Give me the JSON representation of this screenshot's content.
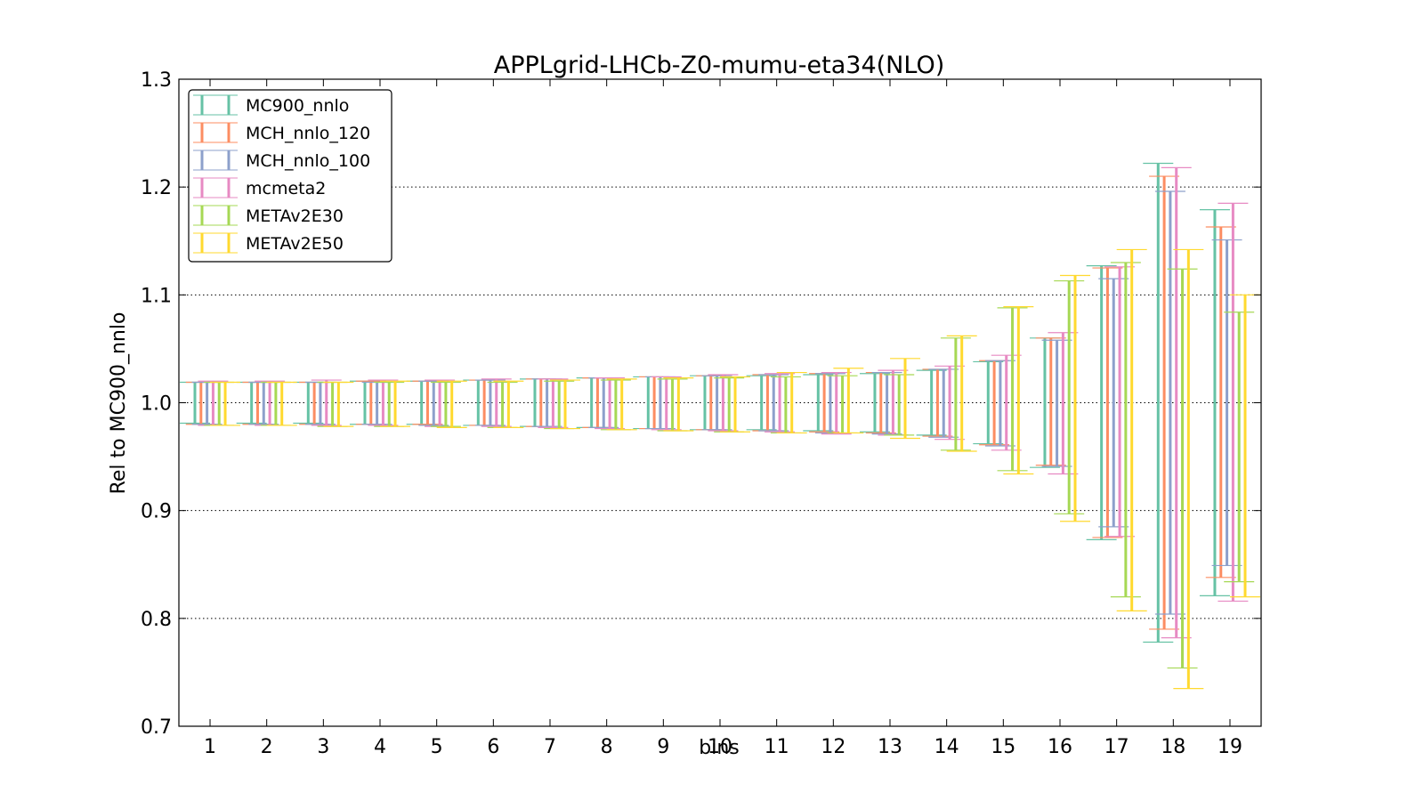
{
  "chart_data": {
    "type": "errorbar",
    "title": "APPLgrid-LHCb-Z0-mumu-eta34(NLO)",
    "xlabel": "bins",
    "ylabel": "Rel to MC900_nnlo",
    "ylim": [
      0.7,
      1.3
    ],
    "yticks": [
      "0.7",
      "0.8",
      "0.9",
      "1.0",
      "1.1",
      "1.2",
      "1.3"
    ],
    "categories": [
      "1",
      "2",
      "3",
      "4",
      "5",
      "6",
      "7",
      "8",
      "9",
      "10",
      "11",
      "12",
      "13",
      "14",
      "15",
      "16",
      "17",
      "18",
      "19"
    ],
    "grid": "horizontal dotted",
    "legend_position": "top-left",
    "series": [
      {
        "name": "MC900_nnlo",
        "color": "#66c2a5",
        "lower": [
          0.981,
          0.981,
          0.981,
          0.98,
          0.98,
          0.979,
          0.978,
          0.977,
          0.976,
          0.975,
          0.975,
          0.974,
          0.973,
          0.97,
          0.962,
          0.94,
          0.873,
          0.778,
          0.821
        ],
        "upper": [
          1.019,
          1.019,
          1.019,
          1.02,
          1.02,
          1.021,
          1.022,
          1.023,
          1.024,
          1.025,
          1.025,
          1.026,
          1.027,
          1.03,
          1.038,
          1.06,
          1.127,
          1.222,
          1.179
        ]
      },
      {
        "name": "MCH_nnlo_120",
        "color": "#fc8d62",
        "lower": [
          0.98,
          0.98,
          0.98,
          0.98,
          0.98,
          0.979,
          0.978,
          0.977,
          0.976,
          0.975,
          0.974,
          0.973,
          0.972,
          0.969,
          0.961,
          0.942,
          0.875,
          0.79,
          0.838
        ],
        "upper": [
          1.019,
          1.019,
          1.019,
          1.02,
          1.02,
          1.021,
          1.022,
          1.023,
          1.024,
          1.025,
          1.026,
          1.027,
          1.028,
          1.031,
          1.039,
          1.06,
          1.125,
          1.21,
          1.163
        ]
      },
      {
        "name": "MCH_nnlo_100",
        "color": "#8da0cb",
        "lower": [
          0.98,
          0.98,
          0.98,
          0.98,
          0.979,
          0.979,
          0.978,
          0.977,
          0.976,
          0.975,
          0.974,
          0.972,
          0.971,
          0.968,
          0.96,
          0.941,
          0.885,
          0.804,
          0.849
        ],
        "upper": [
          1.019,
          1.019,
          1.019,
          1.019,
          1.02,
          1.021,
          1.022,
          1.023,
          1.024,
          1.025,
          1.026,
          1.027,
          1.028,
          1.031,
          1.039,
          1.058,
          1.115,
          1.196,
          1.151
        ]
      },
      {
        "name": "mcmeta2",
        "color": "#e78ac3",
        "lower": [
          0.979,
          0.979,
          0.979,
          0.979,
          0.978,
          0.978,
          0.977,
          0.976,
          0.975,
          0.974,
          0.973,
          0.971,
          0.97,
          0.966,
          0.956,
          0.934,
          0.876,
          0.782,
          0.816
        ],
        "upper": [
          1.02,
          1.02,
          1.021,
          1.021,
          1.021,
          1.022,
          1.022,
          1.023,
          1.024,
          1.026,
          1.027,
          1.028,
          1.03,
          1.034,
          1.044,
          1.065,
          1.126,
          1.218,
          1.185
        ]
      },
      {
        "name": "METAv2E30",
        "color": "#a6d854",
        "lower": [
          0.979,
          0.979,
          0.978,
          0.978,
          0.978,
          0.977,
          0.976,
          0.975,
          0.974,
          0.973,
          0.972,
          0.972,
          0.97,
          0.956,
          0.937,
          0.897,
          0.82,
          0.754,
          0.834
        ],
        "upper": [
          1.019,
          1.019,
          1.019,
          1.019,
          1.019,
          1.019,
          1.02,
          1.021,
          1.022,
          1.023,
          1.024,
          1.025,
          1.026,
          1.06,
          1.088,
          1.113,
          1.13,
          1.124,
          1.084
        ]
      },
      {
        "name": "METAv2E50",
        "color": "#ffd92f",
        "lower": [
          0.979,
          0.979,
          0.978,
          0.978,
          0.977,
          0.977,
          0.976,
          0.975,
          0.974,
          0.973,
          0.972,
          0.972,
          0.967,
          0.955,
          0.934,
          0.89,
          0.807,
          0.735,
          0.82
        ],
        "upper": [
          1.019,
          1.019,
          1.019,
          1.02,
          1.02,
          1.02,
          1.021,
          1.022,
          1.023,
          1.024,
          1.028,
          1.032,
          1.041,
          1.062,
          1.089,
          1.118,
          1.142,
          1.142,
          1.1
        ]
      }
    ]
  }
}
